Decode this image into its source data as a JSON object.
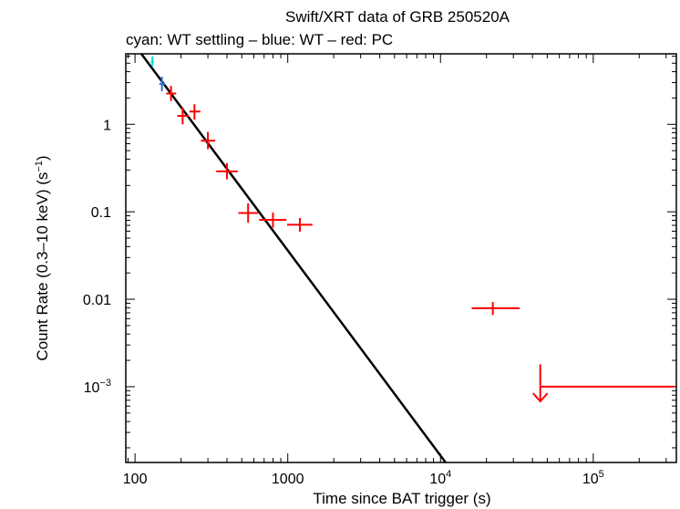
{
  "chart_data": {
    "type": "scatter",
    "title": "Swift/XRT data of GRB 250520A",
    "subtitle": "cyan: WT settling – blue: WT – red: PC",
    "xlabel": "Time since BAT trigger (s)",
    "ylabel": "Count Rate (0.3–10 keV) (s",
    "ylabel_sup": "−1",
    "ylabel_close": ")",
    "xscale": "log",
    "yscale": "log",
    "xlim": [
      87,
      350000
    ],
    "ylim": [
      0.000136,
      6.4
    ],
    "x_ticks": [
      {
        "value": 100,
        "label": "100"
      },
      {
        "value": 1000,
        "label": "1000"
      },
      {
        "value": 10000,
        "base": "10",
        "exp": "4"
      },
      {
        "value": 100000,
        "base": "10",
        "exp": "5"
      }
    ],
    "y_ticks": [
      {
        "value": 1,
        "label": "1"
      },
      {
        "value": 0.1,
        "label": "0.1"
      },
      {
        "value": 0.01,
        "label": "0.01"
      },
      {
        "value": 0.001,
        "base": "10",
        "exp": "−3"
      }
    ],
    "series": [
      {
        "color": "#00d8e0",
        "points": [
          {
            "x": 130,
            "xlo": 127,
            "xhi": 133,
            "y": 5.2,
            "ylo": 4.6,
            "yhi": 6.0
          }
        ]
      },
      {
        "color": "#2f6fd6",
        "points": [
          {
            "x": 150,
            "xlo": 144,
            "xhi": 157,
            "y": 2.9,
            "ylo": 2.4,
            "yhi": 3.5
          }
        ]
      },
      {
        "color": "#ff0000",
        "points": [
          {
            "x": 172,
            "xlo": 160,
            "xhi": 186,
            "y": 2.25,
            "ylo": 1.85,
            "yhi": 2.75
          },
          {
            "x": 205,
            "xlo": 189,
            "xhi": 225,
            "y": 1.25,
            "ylo": 1.0,
            "yhi": 1.55
          },
          {
            "x": 245,
            "xlo": 227,
            "xhi": 268,
            "y": 1.4,
            "ylo": 1.13,
            "yhi": 1.7
          },
          {
            "x": 300,
            "xlo": 270,
            "xhi": 335,
            "y": 0.65,
            "ylo": 0.52,
            "yhi": 0.82
          },
          {
            "x": 400,
            "xlo": 340,
            "xhi": 470,
            "y": 0.29,
            "ylo": 0.235,
            "yhi": 0.36
          },
          {
            "x": 550,
            "xlo": 475,
            "xhi": 640,
            "y": 0.097,
            "ylo": 0.075,
            "yhi": 0.125
          },
          {
            "x": 800,
            "xlo": 650,
            "xhi": 980,
            "y": 0.081,
            "ylo": 0.066,
            "yhi": 0.098
          },
          {
            "x": 1200,
            "xlo": 990,
            "xhi": 1450,
            "y": 0.071,
            "ylo": 0.059,
            "yhi": 0.085
          },
          {
            "x": 22000,
            "xlo": 16000,
            "xhi": 33000,
            "y": 0.0079,
            "ylo": 0.0066,
            "yhi": 0.0093
          }
        ],
        "upper_limits": [
          {
            "x": 45000,
            "xlo": 45000,
            "xhi": 340000,
            "y": 0.001,
            "ytop": 0.0018,
            "ybottom": 0.00068
          }
        ]
      }
    ],
    "model": {
      "color": "#000000",
      "from": {
        "x": 110,
        "y": 6.4
      },
      "to": {
        "x": 10800,
        "y": 0.000136
      }
    }
  }
}
